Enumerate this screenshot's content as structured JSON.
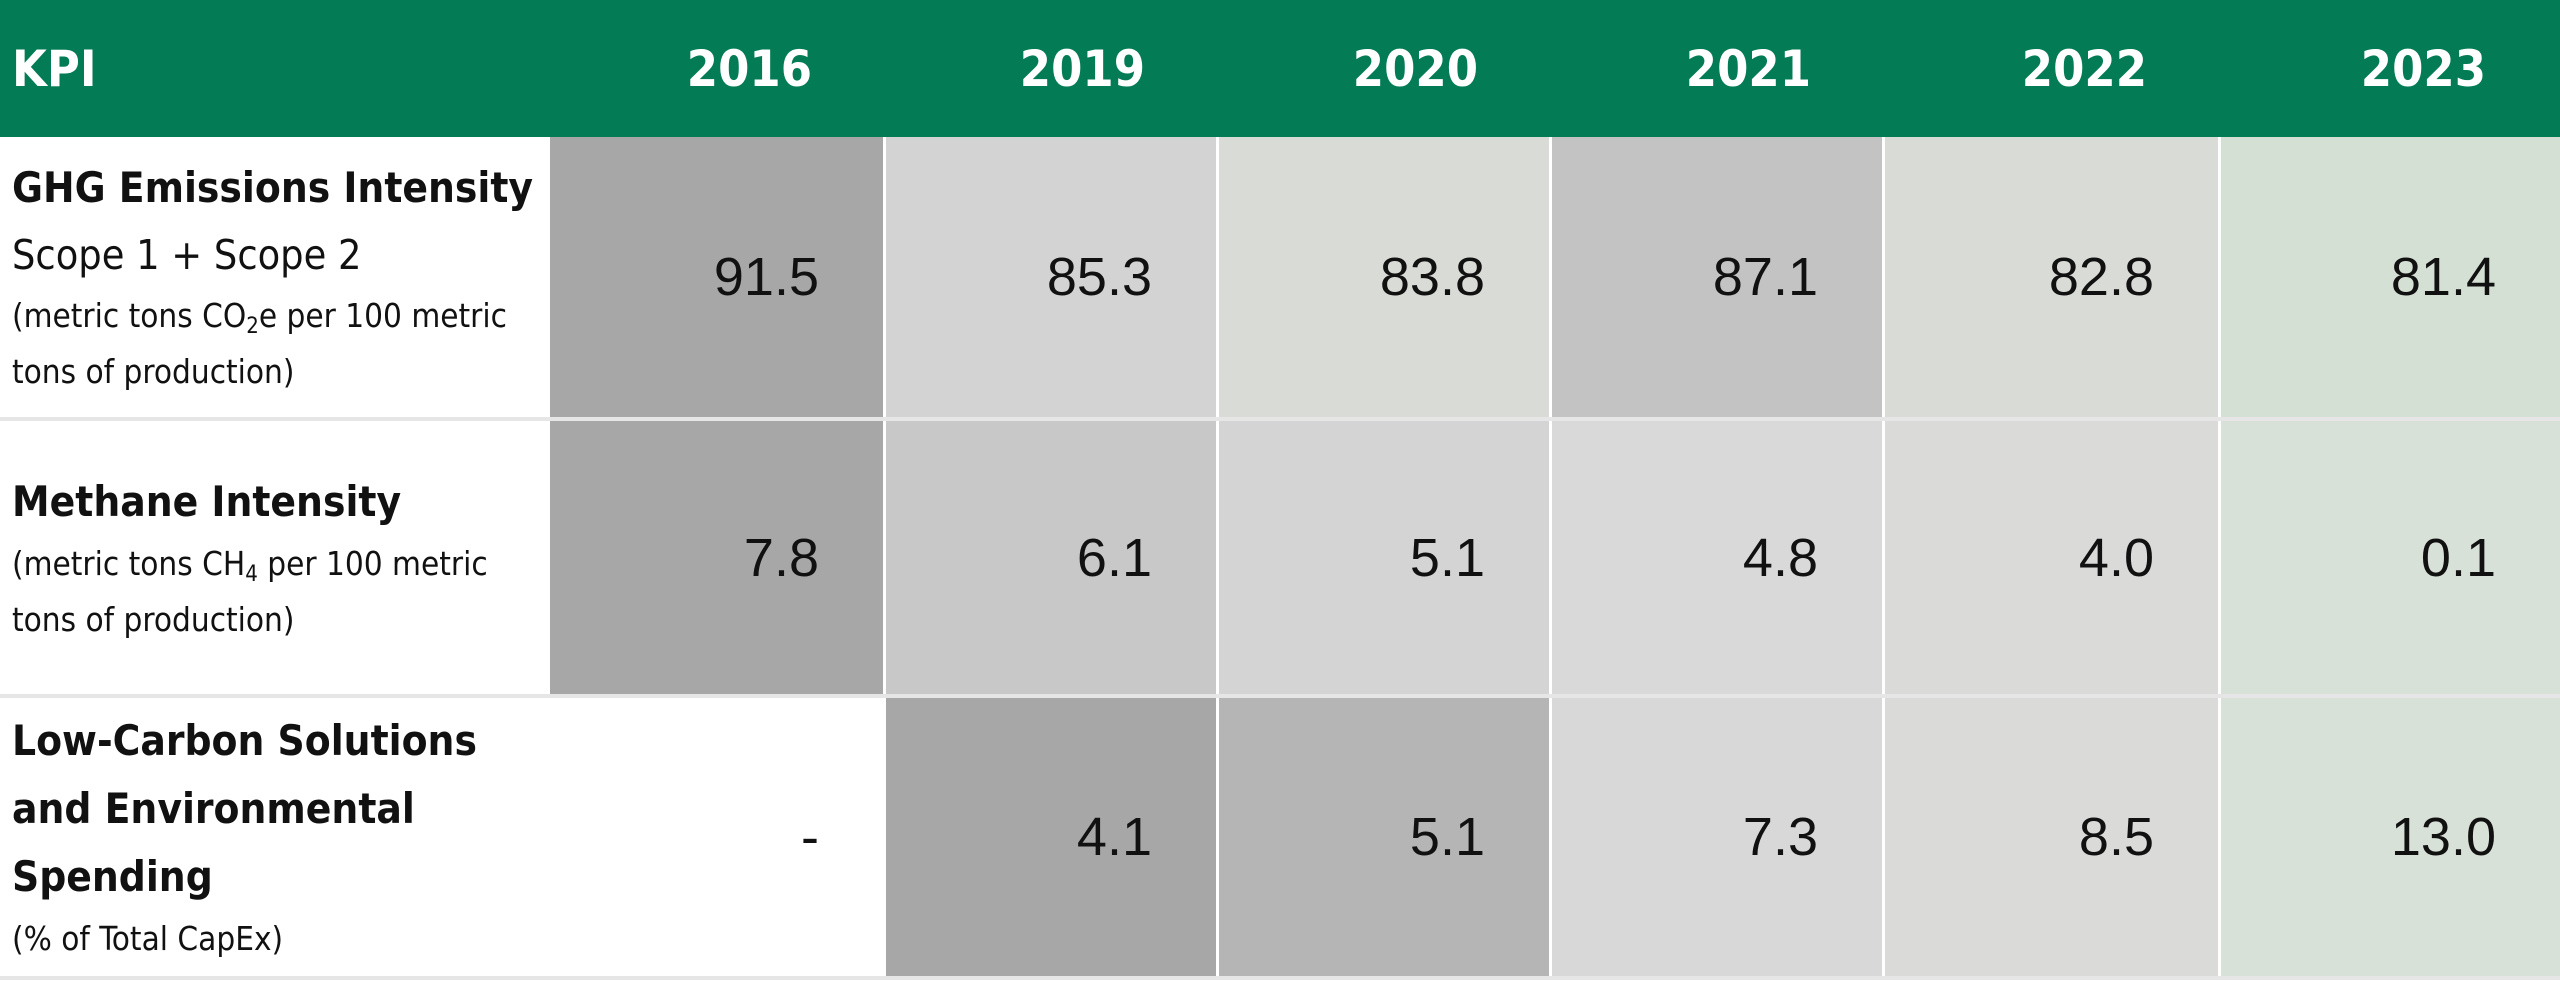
{
  "table": {
    "header": [
      "KPI",
      "2016",
      "2019",
      "2020",
      "2021",
      "2022",
      "2023"
    ],
    "rows": [
      {
        "title": "GHG Emissions Intensity",
        "subtitle": "Scope 1 + Scope 2",
        "note_before": "(metric tons CO",
        "note_sub": "2",
        "note_after": "e per 100 metric tons of production)",
        "values": [
          "91.5",
          "85.3",
          "83.8",
          "87.1",
          "82.8",
          "81.4"
        ],
        "cell_colors": [
          "#a7a7a7",
          "#d3d3d3",
          "#d9dcd6",
          "#c3c3c3",
          "#d9dcd6",
          "#d5e0d5"
        ]
      },
      {
        "title": "Methane Intensity",
        "subtitle": "",
        "note_before": "(metric tons CH",
        "note_sub": "4",
        "note_after": " per 100 metric tons of production)",
        "values": [
          "7.8",
          "6.1",
          "5.1",
          "4.8",
          "4.0",
          "0.1"
        ],
        "cell_colors": [
          "#a7a7a7",
          "#c8c8c8",
          "#d4d4d4",
          "#d9d9d9",
          "#dadad9",
          "#d8e1d8"
        ]
      },
      {
        "title": "Low-Carbon Solutions and Environmental Spending",
        "subtitle": "",
        "note_before": "(% of Total CapEx)",
        "note_sub": "",
        "note_after": "",
        "values": [
          "-",
          "4.1",
          "5.1",
          "7.3",
          "8.5",
          "13.0"
        ],
        "cell_colors": [
          "#ffffff",
          "#a7a7a7",
          "#b5b5b5",
          "#d8d8d8",
          "#dadad9",
          "#d8e1d8"
        ]
      }
    ]
  },
  "colors": {
    "header_bg": "#037b55",
    "header_text": "#ffffff"
  }
}
